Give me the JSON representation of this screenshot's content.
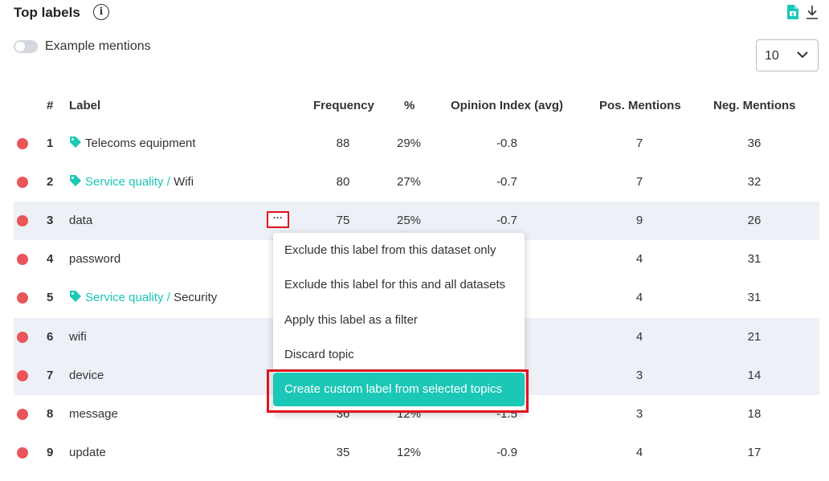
{
  "header": {
    "title": "Top labels",
    "info_glyph": "i"
  },
  "toggle": {
    "label": "Example mentions",
    "checked": false
  },
  "page_size": {
    "value": "10"
  },
  "columns": [
    "#",
    "Label",
    "Frequency",
    "%",
    "Opinion Index (avg)",
    "Pos. Mentions",
    "Neg. Mentions"
  ],
  "rows": [
    {
      "num": "1",
      "label_parent": "",
      "label": "Telecoms equipment",
      "tagged": true,
      "frequency": "88",
      "percent": "29%",
      "opinion": "-0.8",
      "pos": "7",
      "neg": "36"
    },
    {
      "num": "2",
      "label_parent": "Service quality /",
      "label": "Wifi",
      "tagged": true,
      "frequency": "80",
      "percent": "27%",
      "opinion": "-0.7",
      "pos": "7",
      "neg": "32"
    },
    {
      "num": "3",
      "label_parent": "",
      "label": "data",
      "tagged": false,
      "frequency": "75",
      "percent": "25%",
      "opinion": "-0.7",
      "pos": "9",
      "neg": "26"
    },
    {
      "num": "4",
      "label_parent": "",
      "label": "password",
      "tagged": false,
      "frequency": "",
      "percent": "",
      "opinion": "",
      "pos": "4",
      "neg": "31"
    },
    {
      "num": "5",
      "label_parent": "Service quality /",
      "label": "Security",
      "tagged": true,
      "frequency": "",
      "percent": "",
      "opinion": "",
      "pos": "4",
      "neg": "31"
    },
    {
      "num": "6",
      "label_parent": "",
      "label": "wifi",
      "tagged": false,
      "frequency": "",
      "percent": "",
      "opinion": "",
      "pos": "4",
      "neg": "21"
    },
    {
      "num": "7",
      "label_parent": "",
      "label": "device",
      "tagged": false,
      "frequency": "",
      "percent": "",
      "opinion": "",
      "pos": "3",
      "neg": "14"
    },
    {
      "num": "8",
      "label_parent": "",
      "label": "message",
      "tagged": false,
      "frequency": "36",
      "percent": "12%",
      "opinion": "-1.5",
      "pos": "3",
      "neg": "18"
    },
    {
      "num": "9",
      "label_parent": "",
      "label": "update",
      "tagged": false,
      "frequency": "35",
      "percent": "12%",
      "opinion": "-0.9",
      "pos": "4",
      "neg": "17"
    }
  ],
  "more_button": {
    "label": "···"
  },
  "context_menu": {
    "items": [
      "Exclude this label from this dataset only",
      "Exclude this label for this and all datasets",
      "Apply this label as a filter",
      "Discard topic"
    ],
    "highlighted": "Create custom label from selected topics"
  },
  "colors": {
    "accent": "#1bc7b6",
    "status_dot": "#e9565a",
    "alt_row": "#eef0f7",
    "highlight_frame": "#e0141e"
  },
  "icons": {
    "info": "info-circle-icon",
    "export": "export-document-icon",
    "download": "download-icon",
    "tag": "tag-icon",
    "chevron": "chevron-down-icon"
  }
}
